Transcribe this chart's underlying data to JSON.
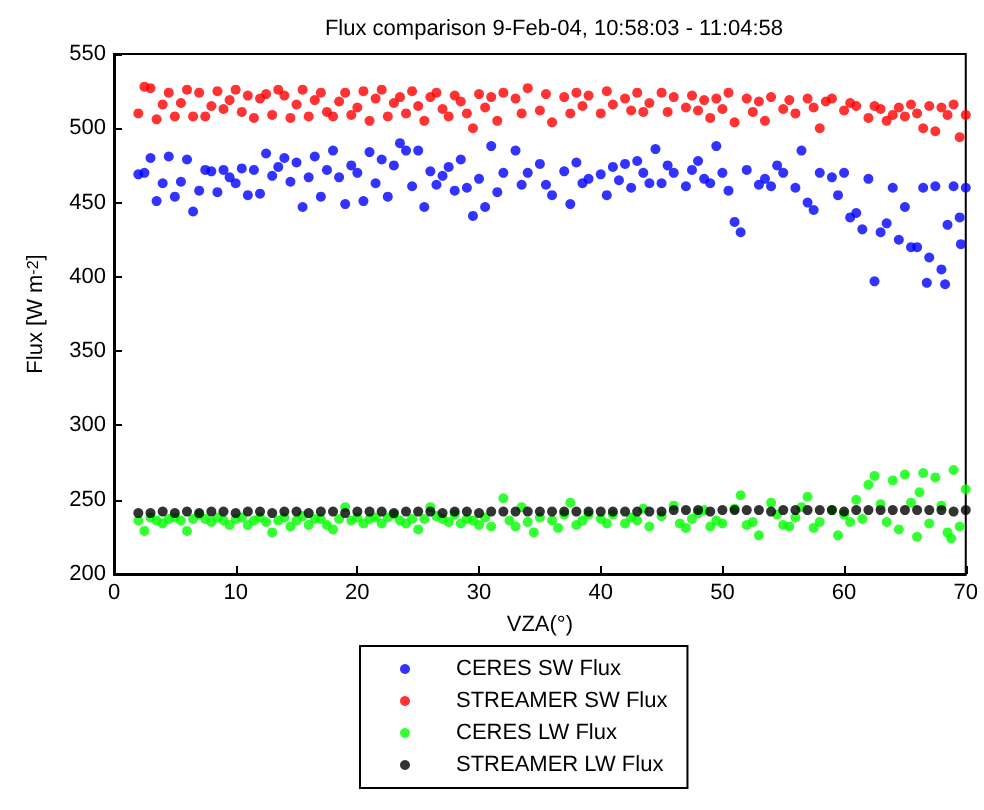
{
  "chart_data": {
    "type": "scatter",
    "title": "Flux comparison 9-Feb-04, 10:58:03 - 11:04:58",
    "xlabel": "VZA(°)",
    "ylabel": "Flux [W m$^{-2}$]",
    "xlim": [
      0,
      70
    ],
    "xticks": [
      0,
      10,
      20,
      30,
      40,
      50,
      60,
      70
    ],
    "ylim": [
      200,
      550
    ],
    "yticks": [
      200,
      250,
      300,
      350,
      400,
      450,
      500,
      550
    ],
    "grid": false,
    "legend": "bottom",
    "marker": "circle",
    "series": [
      {
        "name": "CERES SW Flux",
        "color": "#0000ff",
        "x": [
          2,
          2.5,
          3,
          3.5,
          4,
          4.5,
          5,
          5.5,
          6,
          6.5,
          7,
          7.5,
          8,
          8.5,
          9,
          9.5,
          10,
          10.5,
          11,
          11.5,
          12,
          12.5,
          13,
          13.5,
          14,
          14.5,
          15,
          15.5,
          16,
          16.5,
          17,
          17.5,
          18,
          18.5,
          19,
          19.5,
          20,
          20.5,
          21,
          21.5,
          22,
          22.5,
          23,
          23.5,
          24,
          24.5,
          25,
          25.5,
          26,
          26.5,
          27,
          27.5,
          28,
          28.5,
          29,
          29.5,
          30,
          30.5,
          31,
          31.5,
          32,
          33,
          33.5,
          34,
          35,
          35.5,
          36,
          37,
          37.5,
          38,
          38.5,
          39,
          40,
          40.5,
          41,
          41.5,
          42,
          42.5,
          43,
          43.5,
          44,
          44.5,
          45,
          45.5,
          46,
          47,
          47.5,
          48,
          48.5,
          49,
          49.5,
          50,
          50.5,
          51,
          51.5,
          52,
          53,
          53.5,
          54,
          54.5,
          55,
          56,
          56.5,
          57,
          57.5,
          58,
          59,
          59.5,
          60,
          60.5,
          61,
          61.5,
          62,
          62.5,
          63,
          63.5,
          64,
          64.5,
          65,
          65.5,
          66,
          66.5,
          66.8,
          67,
          67.5,
          68,
          68.3,
          68.5,
          69,
          69.5,
          69.6,
          70
        ],
        "values": [
          469,
          470,
          480,
          451,
          463,
          481,
          454,
          464,
          479,
          444,
          458,
          472,
          471,
          457,
          472,
          467,
          463,
          473,
          455,
          472,
          456,
          483,
          468,
          474,
          480,
          464,
          477,
          447,
          467,
          481,
          454,
          472,
          485,
          467,
          449,
          475,
          470,
          451,
          484,
          463,
          479,
          454,
          475,
          490,
          485,
          461,
          485,
          447,
          471,
          462,
          468,
          474,
          458,
          479,
          460,
          441,
          466,
          447,
          488,
          457,
          470,
          485,
          462,
          470,
          476,
          462,
          455,
          471,
          449,
          477,
          463,
          466,
          469,
          455,
          474,
          465,
          476,
          460,
          478,
          470,
          463,
          486,
          463,
          475,
          470,
          461,
          472,
          478,
          466,
          463,
          488,
          470,
          458,
          437,
          430,
          472,
          462,
          466,
          461,
          475,
          470,
          460,
          485,
          450,
          445,
          470,
          467,
          455,
          470,
          440,
          443,
          432,
          466,
          397,
          430,
          436,
          460,
          425,
          447,
          420,
          420,
          460,
          396,
          413,
          461,
          405,
          395,
          435,
          461,
          440,
          422,
          460
        ]
      },
      {
        "name": "STREAMER SW Flux",
        "color": "#ff0000",
        "x": [
          2,
          2.5,
          3,
          3.5,
          4,
          4.5,
          5,
          5.5,
          6,
          6.5,
          7,
          7.5,
          8,
          8.5,
          9,
          9.5,
          10,
          10.5,
          11,
          11.5,
          12,
          12.5,
          13,
          13.5,
          14,
          14.5,
          15,
          15.5,
          16,
          16.5,
          17,
          17.5,
          18,
          18.5,
          19,
          19.5,
          20,
          20.5,
          21,
          21.5,
          22,
          22.5,
          23,
          23.5,
          24,
          24.5,
          25,
          25.5,
          26,
          26.5,
          27,
          27.5,
          28,
          28.5,
          29,
          29.5,
          30,
          30.5,
          31,
          31.5,
          32,
          33,
          33.5,
          34,
          35,
          35.5,
          36,
          37,
          37.5,
          38,
          38.5,
          39,
          40,
          40.5,
          41,
          42,
          42.5,
          43,
          43.5,
          44,
          45,
          45.5,
          46,
          47,
          47.5,
          48,
          48.5,
          49,
          49.5,
          50,
          50.5,
          51,
          52,
          52.5,
          53,
          53.5,
          54,
          55,
          55.5,
          56,
          57,
          57.5,
          58,
          58.5,
          59,
          60,
          60.5,
          61,
          62,
          62.5,
          63,
          63.5,
          64,
          64.5,
          65,
          65.5,
          66,
          66.5,
          67,
          67.5,
          68,
          68.5,
          69,
          69.5,
          70
        ],
        "values": [
          510,
          528,
          527,
          506,
          516,
          524,
          508,
          517,
          526,
          508,
          524,
          508,
          515,
          525,
          513,
          519,
          526,
          511,
          522,
          507,
          520,
          523,
          509,
          526,
          522,
          507,
          516,
          526,
          508,
          519,
          524,
          511,
          508,
          518,
          524,
          509,
          514,
          525,
          505,
          520,
          526,
          508,
          517,
          521,
          510,
          525,
          515,
          505,
          521,
          524,
          513,
          508,
          522,
          518,
          510,
          500,
          523,
          514,
          521,
          505,
          524,
          520,
          510,
          527,
          512,
          523,
          504,
          521,
          510,
          524,
          515,
          522,
          510,
          525,
          516,
          520,
          512,
          524,
          511,
          517,
          524,
          511,
          521,
          514,
          522,
          512,
          519,
          507,
          520,
          513,
          524,
          504,
          520,
          511,
          518,
          505,
          521,
          513,
          519,
          510,
          520,
          514,
          500,
          518,
          520,
          512,
          517,
          515,
          507,
          515,
          513,
          505,
          509,
          514,
          508,
          516,
          510,
          500,
          515,
          498,
          514,
          509,
          516,
          494,
          509
        ]
      },
      {
        "name": "CERES LW Flux",
        "color": "#00ff00",
        "x": [
          2,
          2.5,
          3,
          3.5,
          4,
          4.5,
          5,
          5.5,
          6,
          6.5,
          7,
          7.5,
          8,
          8.5,
          9,
          9.5,
          10,
          10.5,
          11,
          11.5,
          12,
          12.5,
          13,
          13.5,
          14,
          14.5,
          15,
          15.5,
          16,
          16.5,
          17,
          17.5,
          18,
          18.5,
          19,
          19.5,
          20,
          20.5,
          21,
          21.5,
          22,
          22.5,
          23,
          23.5,
          24,
          24.5,
          25,
          25.5,
          26,
          26.5,
          27,
          27.5,
          28,
          28.5,
          29,
          29.5,
          30,
          30.5,
          31,
          32,
          32.5,
          33,
          33.5,
          34,
          34.5,
          35,
          36,
          36.5,
          37,
          37.5,
          38,
          38.5,
          39,
          40,
          40.5,
          41,
          42,
          42.5,
          43,
          43.5,
          44,
          45,
          46,
          46.5,
          47,
          47.5,
          48,
          48.5,
          49,
          49.5,
          50,
          51,
          51.5,
          52,
          52.5,
          53,
          54,
          54.5,
          55,
          55.5,
          56,
          56.5,
          57,
          57.5,
          58,
          59,
          59.5,
          60,
          60.5,
          61,
          61.5,
          62,
          62.5,
          63,
          63.5,
          64,
          64.5,
          65,
          65.5,
          66,
          66.2,
          66.5,
          67,
          67.5,
          68,
          68.5,
          68.8,
          69,
          69.5,
          70
        ],
        "values": [
          236,
          229,
          238,
          236,
          234,
          237,
          238,
          236,
          229,
          237,
          240,
          237,
          235,
          238,
          236,
          233,
          237,
          238,
          233,
          236,
          238,
          235,
          228,
          236,
          238,
          232,
          236,
          239,
          233,
          237,
          237,
          233,
          230,
          237,
          245,
          236,
          238,
          234,
          237,
          238,
          234,
          238,
          240,
          236,
          234,
          237,
          230,
          237,
          245,
          239,
          237,
          235,
          240,
          234,
          237,
          236,
          233,
          238,
          232,
          251,
          236,
          232,
          245,
          235,
          228,
          238,
          236,
          231,
          240,
          248,
          233,
          236,
          240,
          237,
          234,
          240,
          234,
          238,
          236,
          244,
          232,
          239,
          246,
          234,
          231,
          237,
          241,
          243,
          232,
          236,
          234,
          244,
          253,
          233,
          235,
          226,
          248,
          240,
          233,
          232,
          238,
          245,
          252,
          231,
          235,
          243,
          226,
          240,
          235,
          250,
          237,
          260,
          266,
          247,
          235,
          263,
          230,
          267,
          248,
          225,
          255,
          268,
          234,
          265,
          246,
          228,
          224,
          270,
          232,
          257
        ]
      },
      {
        "name": "STREAMER LW Flux",
        "color": "#000000",
        "x": [
          2,
          3,
          4,
          5,
          6,
          7,
          8,
          9,
          10,
          11,
          12,
          13,
          14,
          15,
          16,
          17,
          18,
          19,
          20,
          21,
          22,
          23,
          24,
          25,
          26,
          27,
          28,
          29,
          30,
          31,
          32,
          33,
          34,
          35,
          36,
          37,
          38,
          39,
          40,
          41,
          42,
          43,
          44,
          45,
          46,
          47,
          48,
          49,
          50,
          51,
          52,
          53,
          54,
          55,
          56,
          57,
          58,
          59,
          60,
          61,
          62,
          63,
          64,
          65,
          66,
          67,
          68,
          69,
          70
        ],
        "values": [
          241,
          241,
          242,
          241,
          242,
          241,
          242,
          242,
          241,
          242,
          242,
          241,
          242,
          242,
          241,
          242,
          242,
          241,
          242,
          242,
          242,
          241,
          242,
          242,
          242,
          241,
          242,
          242,
          241,
          242,
          242,
          242,
          242,
          242,
          242,
          242,
          242,
          242,
          242,
          242,
          242,
          242,
          242,
          242,
          243,
          243,
          243,
          242,
          243,
          243,
          243,
          243,
          242,
          243,
          243,
          243,
          243,
          243,
          242,
          243,
          243,
          243,
          243,
          243,
          243,
          243,
          243,
          242,
          243
        ]
      }
    ]
  }
}
